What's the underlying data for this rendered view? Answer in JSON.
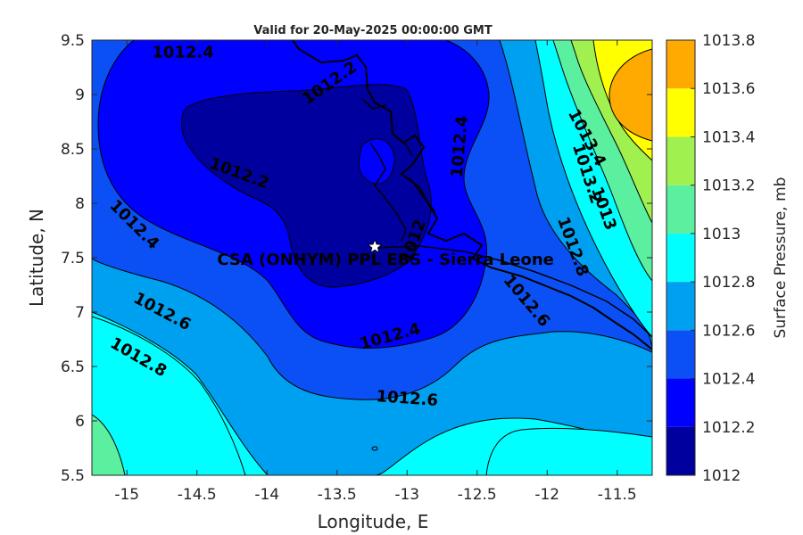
{
  "chart_data": {
    "type": "contour",
    "title": "Valid for 20-May-2025 00:00:00 GMT",
    "xlabel": "Longitude, E",
    "ylabel": "Latitude, N",
    "xlim": [
      -15.25,
      -11.25
    ],
    "ylim": [
      5.5,
      9.5
    ],
    "x_ticks": [
      "-15",
      "-14.5",
      "-14",
      "-13.5",
      "-13",
      "-12.5",
      "-12",
      "-11.5"
    ],
    "x_tick_values": [
      -15,
      -14.5,
      -14,
      -13.5,
      -13,
      -12.5,
      -12,
      -11.5
    ],
    "y_ticks": [
      "5.5",
      "6",
      "6.5",
      "7",
      "7.5",
      "8",
      "8.5",
      "9",
      "9.5"
    ],
    "y_tick_values": [
      5.5,
      6,
      6.5,
      7,
      7.5,
      8,
      8.5,
      9,
      9.5
    ],
    "colorbar": {
      "label": "Surface Pressure, mb",
      "levels": [
        1012,
        1012.2,
        1012.4,
        1012.6,
        1012.8,
        1013,
        1013.2,
        1013.4,
        1013.6,
        1013.8
      ],
      "tick_labels": [
        "1012",
        "1012.2",
        "1012.4",
        "1012.6",
        "1012.8",
        "1013",
        "1013.2",
        "1013.4",
        "1013.6",
        "1013.8"
      ],
      "colors": [
        "#00009f",
        "#0000ff",
        "#0a50f5",
        "#00a0f0",
        "#00ffff",
        "#5af0a0",
        "#a0f050",
        "#ffff00",
        "#ffaa00",
        "#ff5a00"
      ]
    },
    "contour_labels": [
      {
        "text": "1012.4",
        "lon": -14.6,
        "lat": 9.38,
        "angle": 0
      },
      {
        "text": "1012.2",
        "lon": -13.55,
        "lat": 9.1,
        "angle": -35
      },
      {
        "text": "1012.2",
        "lon": -14.2,
        "lat": 8.27,
        "angle": 20
      },
      {
        "text": "1012.4",
        "lon": -12.62,
        "lat": 8.52,
        "angle": -85
      },
      {
        "text": "1012.4",
        "lon": -14.95,
        "lat": 7.8,
        "angle": 45
      },
      {
        "text": "1012.6",
        "lon": -14.75,
        "lat": 7.0,
        "angle": 28
      },
      {
        "text": "1012.8",
        "lon": -14.92,
        "lat": 6.58,
        "angle": 30
      },
      {
        "text": "1012.4",
        "lon": -13.12,
        "lat": 6.77,
        "angle": -15
      },
      {
        "text": "1012.6",
        "lon": -13.0,
        "lat": 6.2,
        "angle": 4
      },
      {
        "text": "1012",
        "lon": -12.95,
        "lat": 7.65,
        "angle": -70
      },
      {
        "text": "1012.6",
        "lon": -12.15,
        "lat": 7.1,
        "angle": 50
      },
      {
        "text": "1012.8",
        "lon": -11.82,
        "lat": 7.6,
        "angle": 70
      },
      {
        "text": "1013",
        "lon": -11.6,
        "lat": 7.95,
        "angle": 70
      },
      {
        "text": "1013.2",
        "lon": -11.72,
        "lat": 8.27,
        "angle": 72
      },
      {
        "text": "1013.4",
        "lon": -11.72,
        "lat": 8.6,
        "angle": 62
      }
    ],
    "station": {
      "name": "CSA (ONHYM) PPL EBS  - Sierra Leone",
      "lon": -13.23,
      "lat": 7.6
    }
  }
}
